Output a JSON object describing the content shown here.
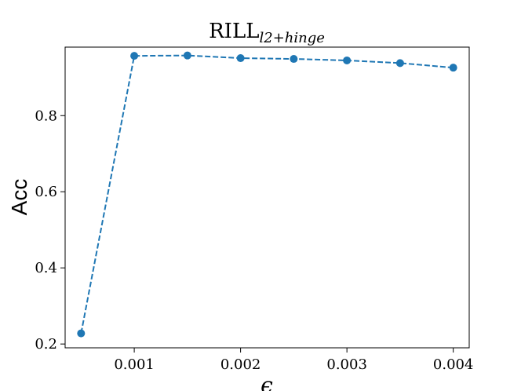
{
  "chart_data": {
    "type": "line",
    "title_main": "RILL",
    "title_sub": "l2+hinge",
    "xlabel": "ϵ",
    "ylabel": "Acc",
    "xlim": [
      0.00035,
      0.00415
    ],
    "ylim": [
      0.19,
      0.98
    ],
    "xticks": [
      0.001,
      0.002,
      0.003,
      0.004
    ],
    "xtick_labels": [
      "0.001",
      "0.002",
      "0.003",
      "0.004"
    ],
    "yticks": [
      0.2,
      0.4,
      0.6,
      0.8
    ],
    "ytick_labels": [
      "0.2",
      "0.4",
      "0.6",
      "0.8"
    ],
    "grid": false,
    "series": [
      {
        "x": [
          0.0005,
          0.001,
          0.0015,
          0.002,
          0.0025,
          0.003,
          0.0035,
          0.004
        ],
        "y": [
          0.228,
          0.957,
          0.958,
          0.951,
          0.949,
          0.945,
          0.938,
          0.926
        ],
        "color": "#1f77b4",
        "linestyle": "dashed",
        "marker": "circle"
      }
    ]
  }
}
